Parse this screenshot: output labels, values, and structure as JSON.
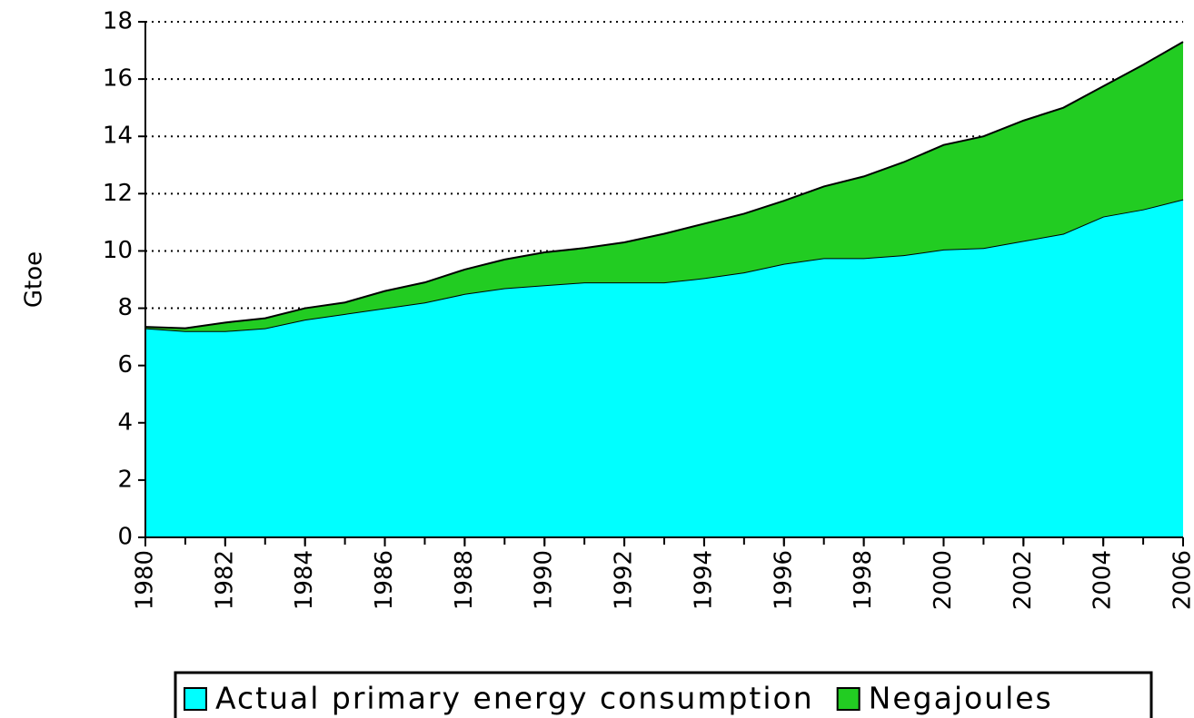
{
  "chart_data": {
    "type": "stacked_area",
    "y_label": "Gtoe",
    "x": [
      1980,
      1981,
      1982,
      1983,
      1984,
      1985,
      1986,
      1987,
      1988,
      1989,
      1990,
      1991,
      1992,
      1993,
      1994,
      1995,
      1996,
      1997,
      1998,
      1999,
      2000,
      2001,
      2002,
      2003,
      2004,
      2005,
      2006
    ],
    "series": [
      {
        "name": "Actual primary energy consumption",
        "color": "#00ffff",
        "values": [
          7.3,
          7.2,
          7.2,
          7.3,
          7.6,
          7.8,
          8.0,
          8.2,
          8.5,
          8.7,
          8.8,
          8.9,
          8.9,
          8.9,
          9.05,
          9.25,
          9.55,
          9.75,
          9.75,
          9.85,
          10.05,
          10.1,
          10.35,
          10.6,
          11.2,
          11.45,
          11.8
        ]
      },
      {
        "name": "Negajoules",
        "color": "#22cc22",
        "values": [
          0.05,
          0.1,
          0.3,
          0.35,
          0.4,
          0.4,
          0.6,
          0.7,
          0.85,
          1.0,
          1.15,
          1.2,
          1.4,
          1.7,
          1.9,
          2.05,
          2.2,
          2.5,
          2.85,
          3.25,
          3.65,
          3.9,
          4.2,
          4.4,
          4.55,
          5.05,
          5.5
        ]
      }
    ],
    "xlim": [
      1980,
      2006
    ],
    "xticks": [
      1980,
      1982,
      1984,
      1986,
      1988,
      1990,
      1992,
      1994,
      1996,
      1998,
      2000,
      2002,
      2004,
      2006
    ],
    "ylim": [
      0,
      18
    ],
    "yticks": [
      0,
      2,
      4,
      6,
      8,
      10,
      12,
      14,
      16,
      18
    ],
    "grid": true,
    "legend": "bottom"
  }
}
